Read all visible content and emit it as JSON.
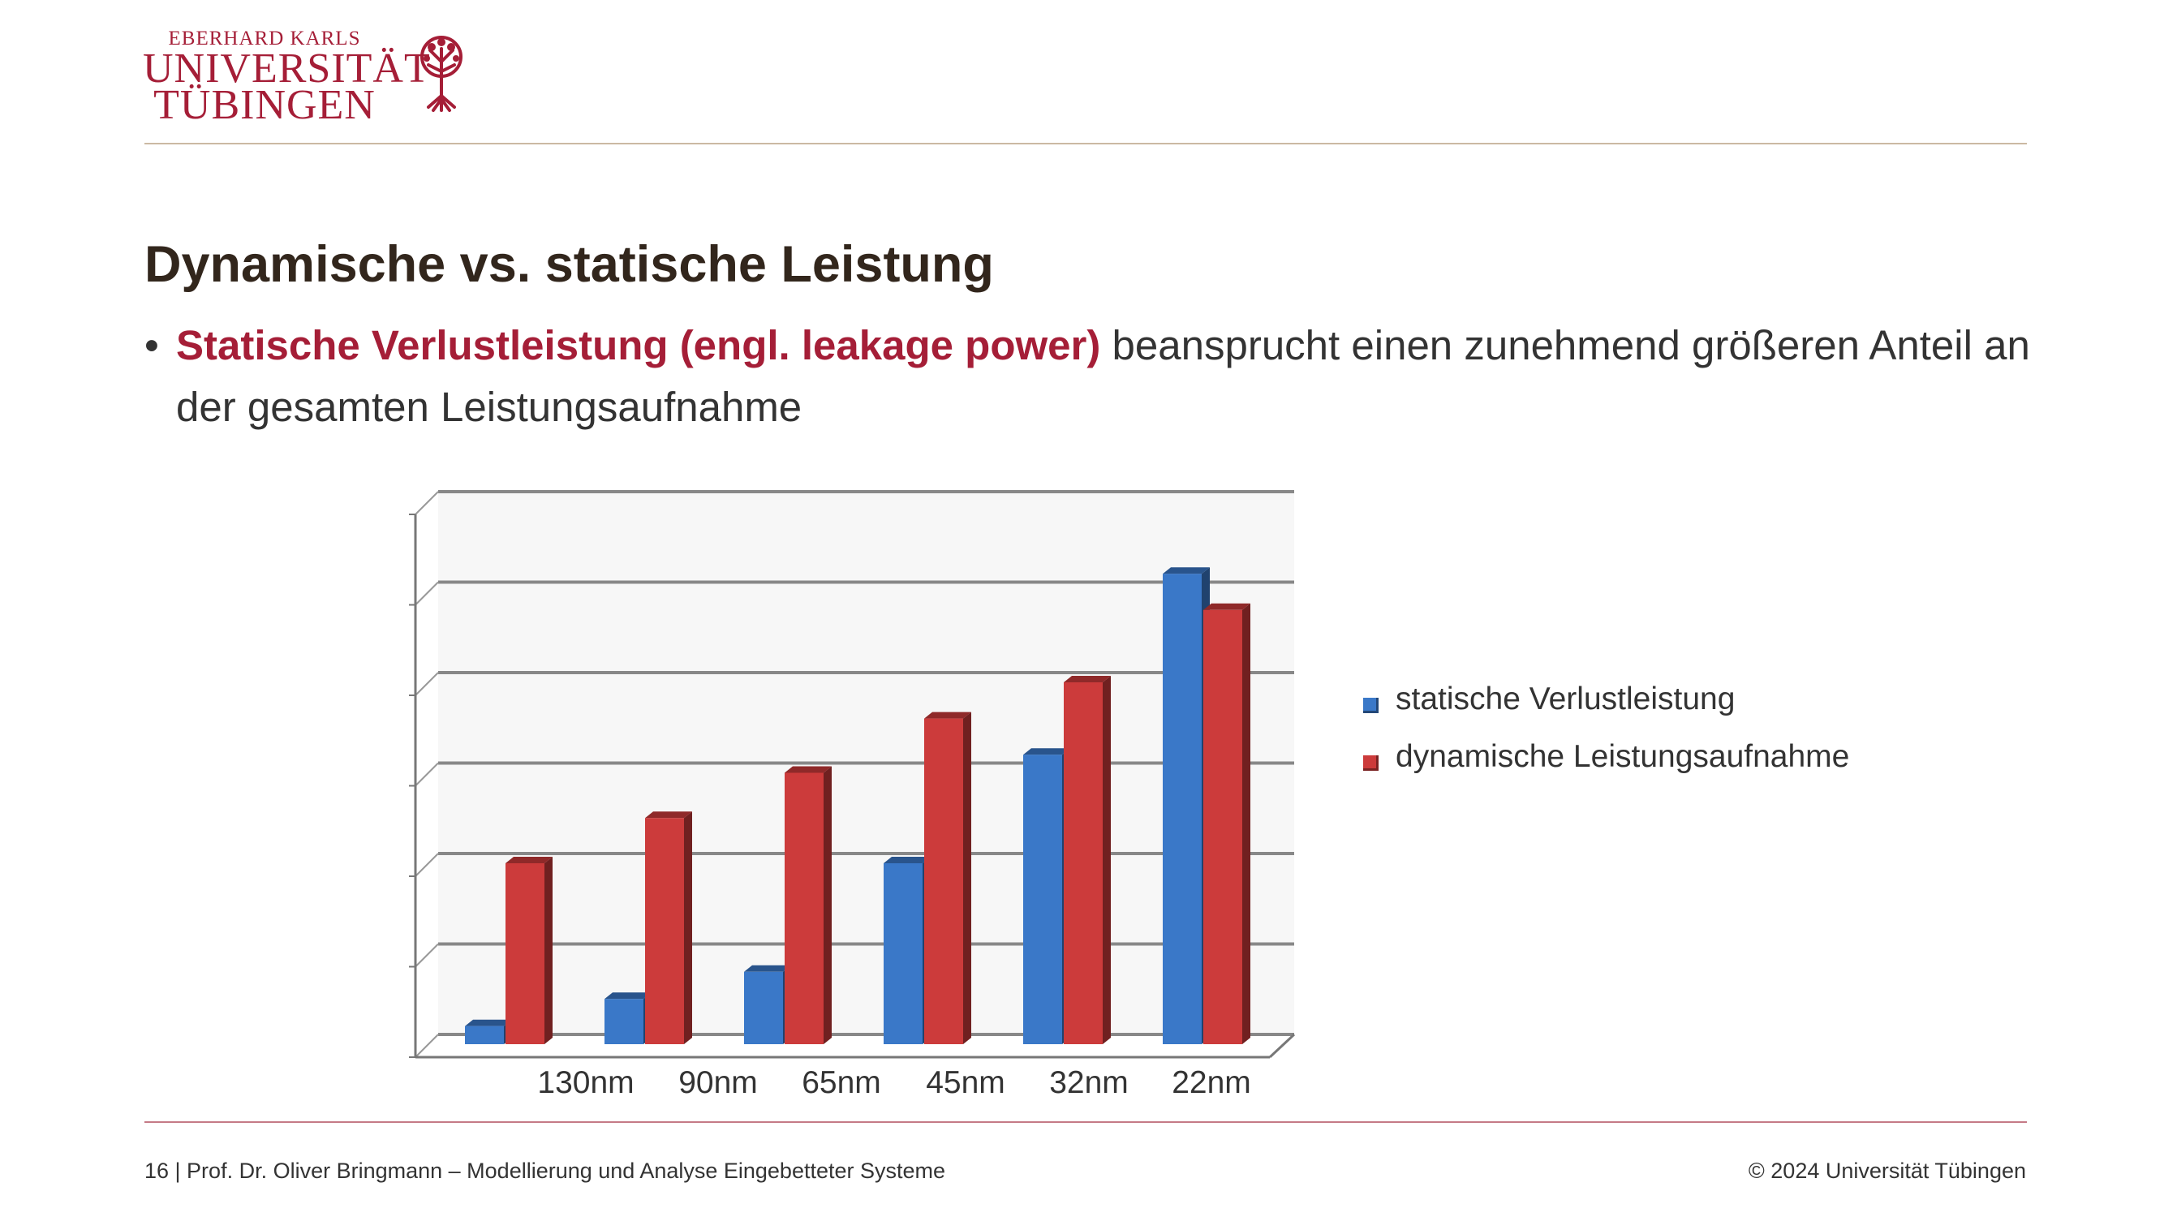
{
  "logo": {
    "line1": "EBERHARD KARLS",
    "line2": "UNIVERSITÄT",
    "line3": "TÜBINGEN",
    "icon": "tree-seal-icon"
  },
  "slide": {
    "title": "Dynamische vs. statische Leistung",
    "bullet_marker": "•",
    "bullet_highlight": "Statische Verlustleistung (engl. leakage power)",
    "bullet_rest": " beansprucht einen zunehmend größeren Anteil an der gesamten Leistungsaufnahme"
  },
  "chart_data": {
    "type": "bar",
    "categories": [
      "130nm",
      "90nm",
      "65nm",
      "45nm",
      "32nm",
      "22nm"
    ],
    "series": [
      {
        "name": "statische Verlustleistung",
        "values": [
          0.2,
          0.5,
          0.8,
          2.0,
          3.2,
          5.2
        ],
        "color": "#3a78c8"
      },
      {
        "name": "dynamische Leistungsaufnahme",
        "values": [
          2.0,
          2.5,
          3.0,
          3.6,
          4.0,
          4.8
        ],
        "color": "#cc3b3b"
      }
    ],
    "ylim": [
      0,
      6
    ],
    "grid": true,
    "legend_position": "right",
    "style": "3d"
  },
  "footer": {
    "left": "16 | Prof. Dr. Oliver Bringmann – Modellierung und Analyse Eingebetteter Systeme",
    "right": "© 2024 Universität Tübingen"
  },
  "colors": {
    "brand_red": "#a51e37",
    "title_dark": "#32261c"
  }
}
